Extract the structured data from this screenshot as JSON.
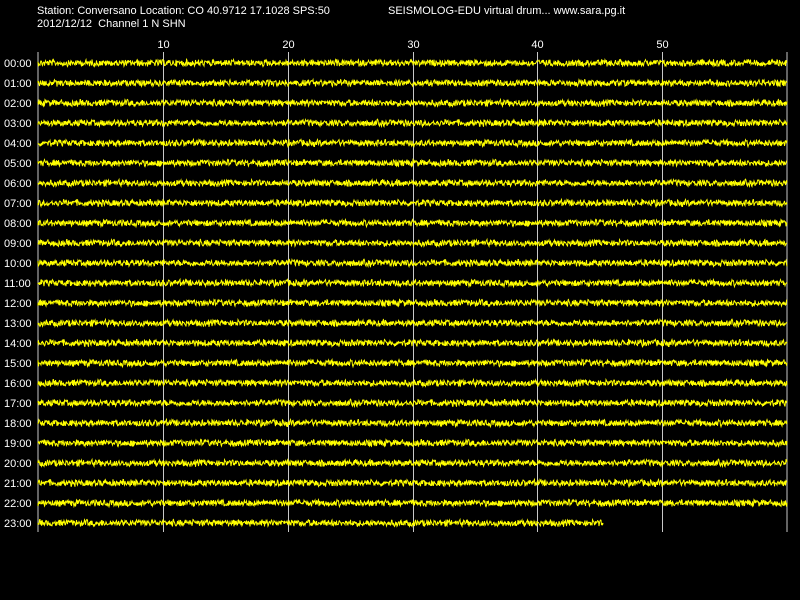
{
  "header": {
    "station_line": "Station: Conversano Location: CO 40.9712 17.1028 SPS:50",
    "software_line": "SEISMOLOG-EDU virtual drum... www.sara.pg.it",
    "date_line": "2012/12/12  Channel 1 N SHN"
  },
  "colors": {
    "background": "#000000",
    "trace": "#ffff00",
    "grid": "#c8c8c8",
    "text": "#ffffff"
  },
  "chart_data": {
    "type": "line",
    "title": "",
    "xlabel": "",
    "ylabel": "",
    "xlim": [
      0,
      60
    ],
    "x_ticks": [
      10,
      20,
      30,
      40,
      50
    ],
    "x_tick_labels": [
      "10",
      "20",
      "30",
      "40",
      "50"
    ],
    "grid": true,
    "rows": [
      {
        "label": "00:00",
        "end_minute": 60
      },
      {
        "label": "01:00",
        "end_minute": 60
      },
      {
        "label": "02:00",
        "end_minute": 60
      },
      {
        "label": "03:00",
        "end_minute": 60
      },
      {
        "label": "04:00",
        "end_minute": 60
      },
      {
        "label": "05:00",
        "end_minute": 60
      },
      {
        "label": "06:00",
        "end_minute": 60
      },
      {
        "label": "07:00",
        "end_minute": 60
      },
      {
        "label": "08:00",
        "end_minute": 60
      },
      {
        "label": "09:00",
        "end_minute": 60
      },
      {
        "label": "10:00",
        "end_minute": 60
      },
      {
        "label": "11:00",
        "end_minute": 60
      },
      {
        "label": "12:00",
        "end_minute": 60
      },
      {
        "label": "13:00",
        "end_minute": 60
      },
      {
        "label": "14:00",
        "end_minute": 60
      },
      {
        "label": "15:00",
        "end_minute": 60
      },
      {
        "label": "16:00",
        "end_minute": 60
      },
      {
        "label": "17:00",
        "end_minute": 60
      },
      {
        "label": "18:00",
        "end_minute": 60
      },
      {
        "label": "19:00",
        "end_minute": 60
      },
      {
        "label": "20:00",
        "end_minute": 60
      },
      {
        "label": "21:00",
        "end_minute": 60
      },
      {
        "label": "22:00",
        "end_minute": 60
      },
      {
        "label": "23:00",
        "end_minute": 45.3
      }
    ]
  }
}
